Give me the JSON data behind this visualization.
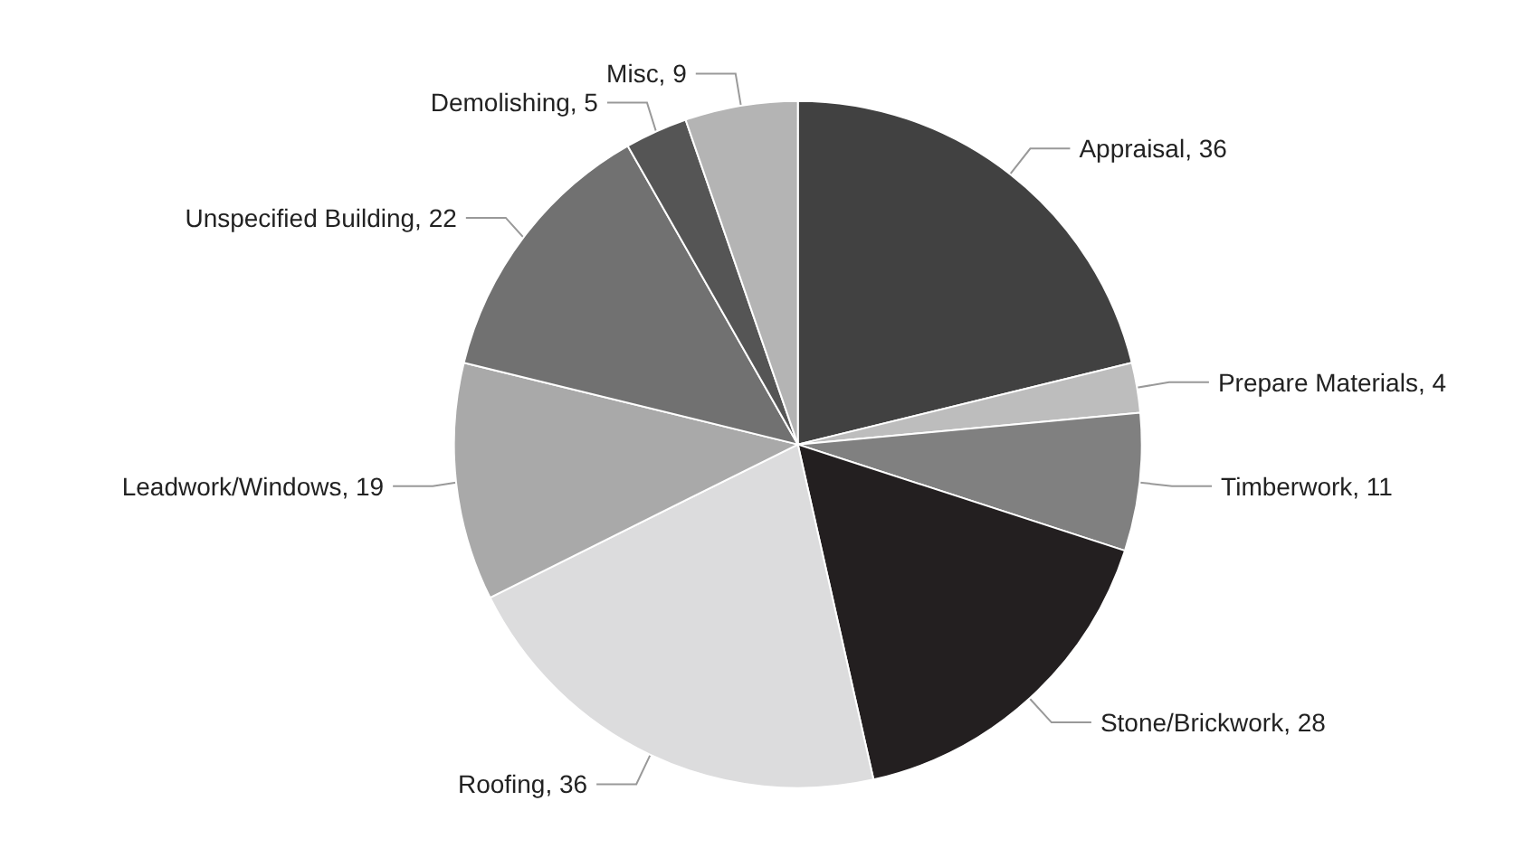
{
  "chart_data": {
    "type": "pie",
    "categories": [
      "Appraisal",
      "Prepare Materials",
      "Timberwork",
      "Stone/Brickwork",
      "Roofing",
      "Leadwork/Windows",
      "Unspecified Building",
      "Demolishing",
      "Misc"
    ],
    "values": [
      36,
      4,
      11,
      28,
      36,
      19,
      22,
      5,
      9
    ],
    "value_labels": [
      ", 36",
      ", 4",
      ", 11",
      ", 28",
      ", 36",
      ", 19",
      ", 22",
      ", 5",
      ", 9"
    ],
    "colors": [
      "#414141",
      "#bdbdbd",
      "#808080",
      "#231f20",
      "#dcdcdd",
      "#a9a9a9",
      "#717171",
      "#555555",
      "#b4b4b4"
    ]
  }
}
